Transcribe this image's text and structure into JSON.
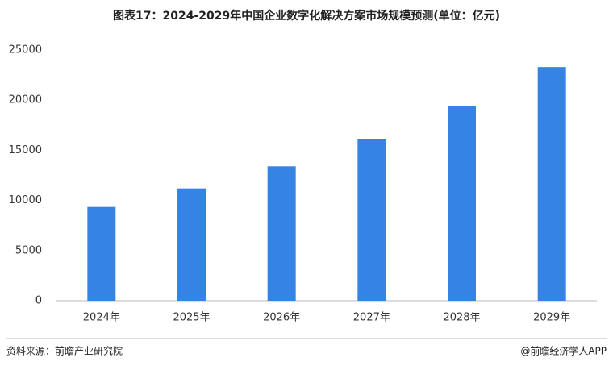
{
  "chart_data": {
    "type": "bar",
    "title": "图表17：2024-2029年中国企业数字化解决方案市场规模预测(单位：亿元)",
    "categories": [
      "2024年",
      "2025年",
      "2026年",
      "2027年",
      "2028年",
      "2029年"
    ],
    "values": [
      9350,
      11200,
      13400,
      16150,
      19450,
      23300
    ],
    "color": "#3683e6",
    "ylim": [
      0,
      25000
    ],
    "yticks": [
      0,
      5000,
      10000,
      15000,
      20000,
      25000
    ],
    "grid": false,
    "source": "资料来源：前瞻产业研究院",
    "credit": "@前瞻经济学人APP"
  }
}
